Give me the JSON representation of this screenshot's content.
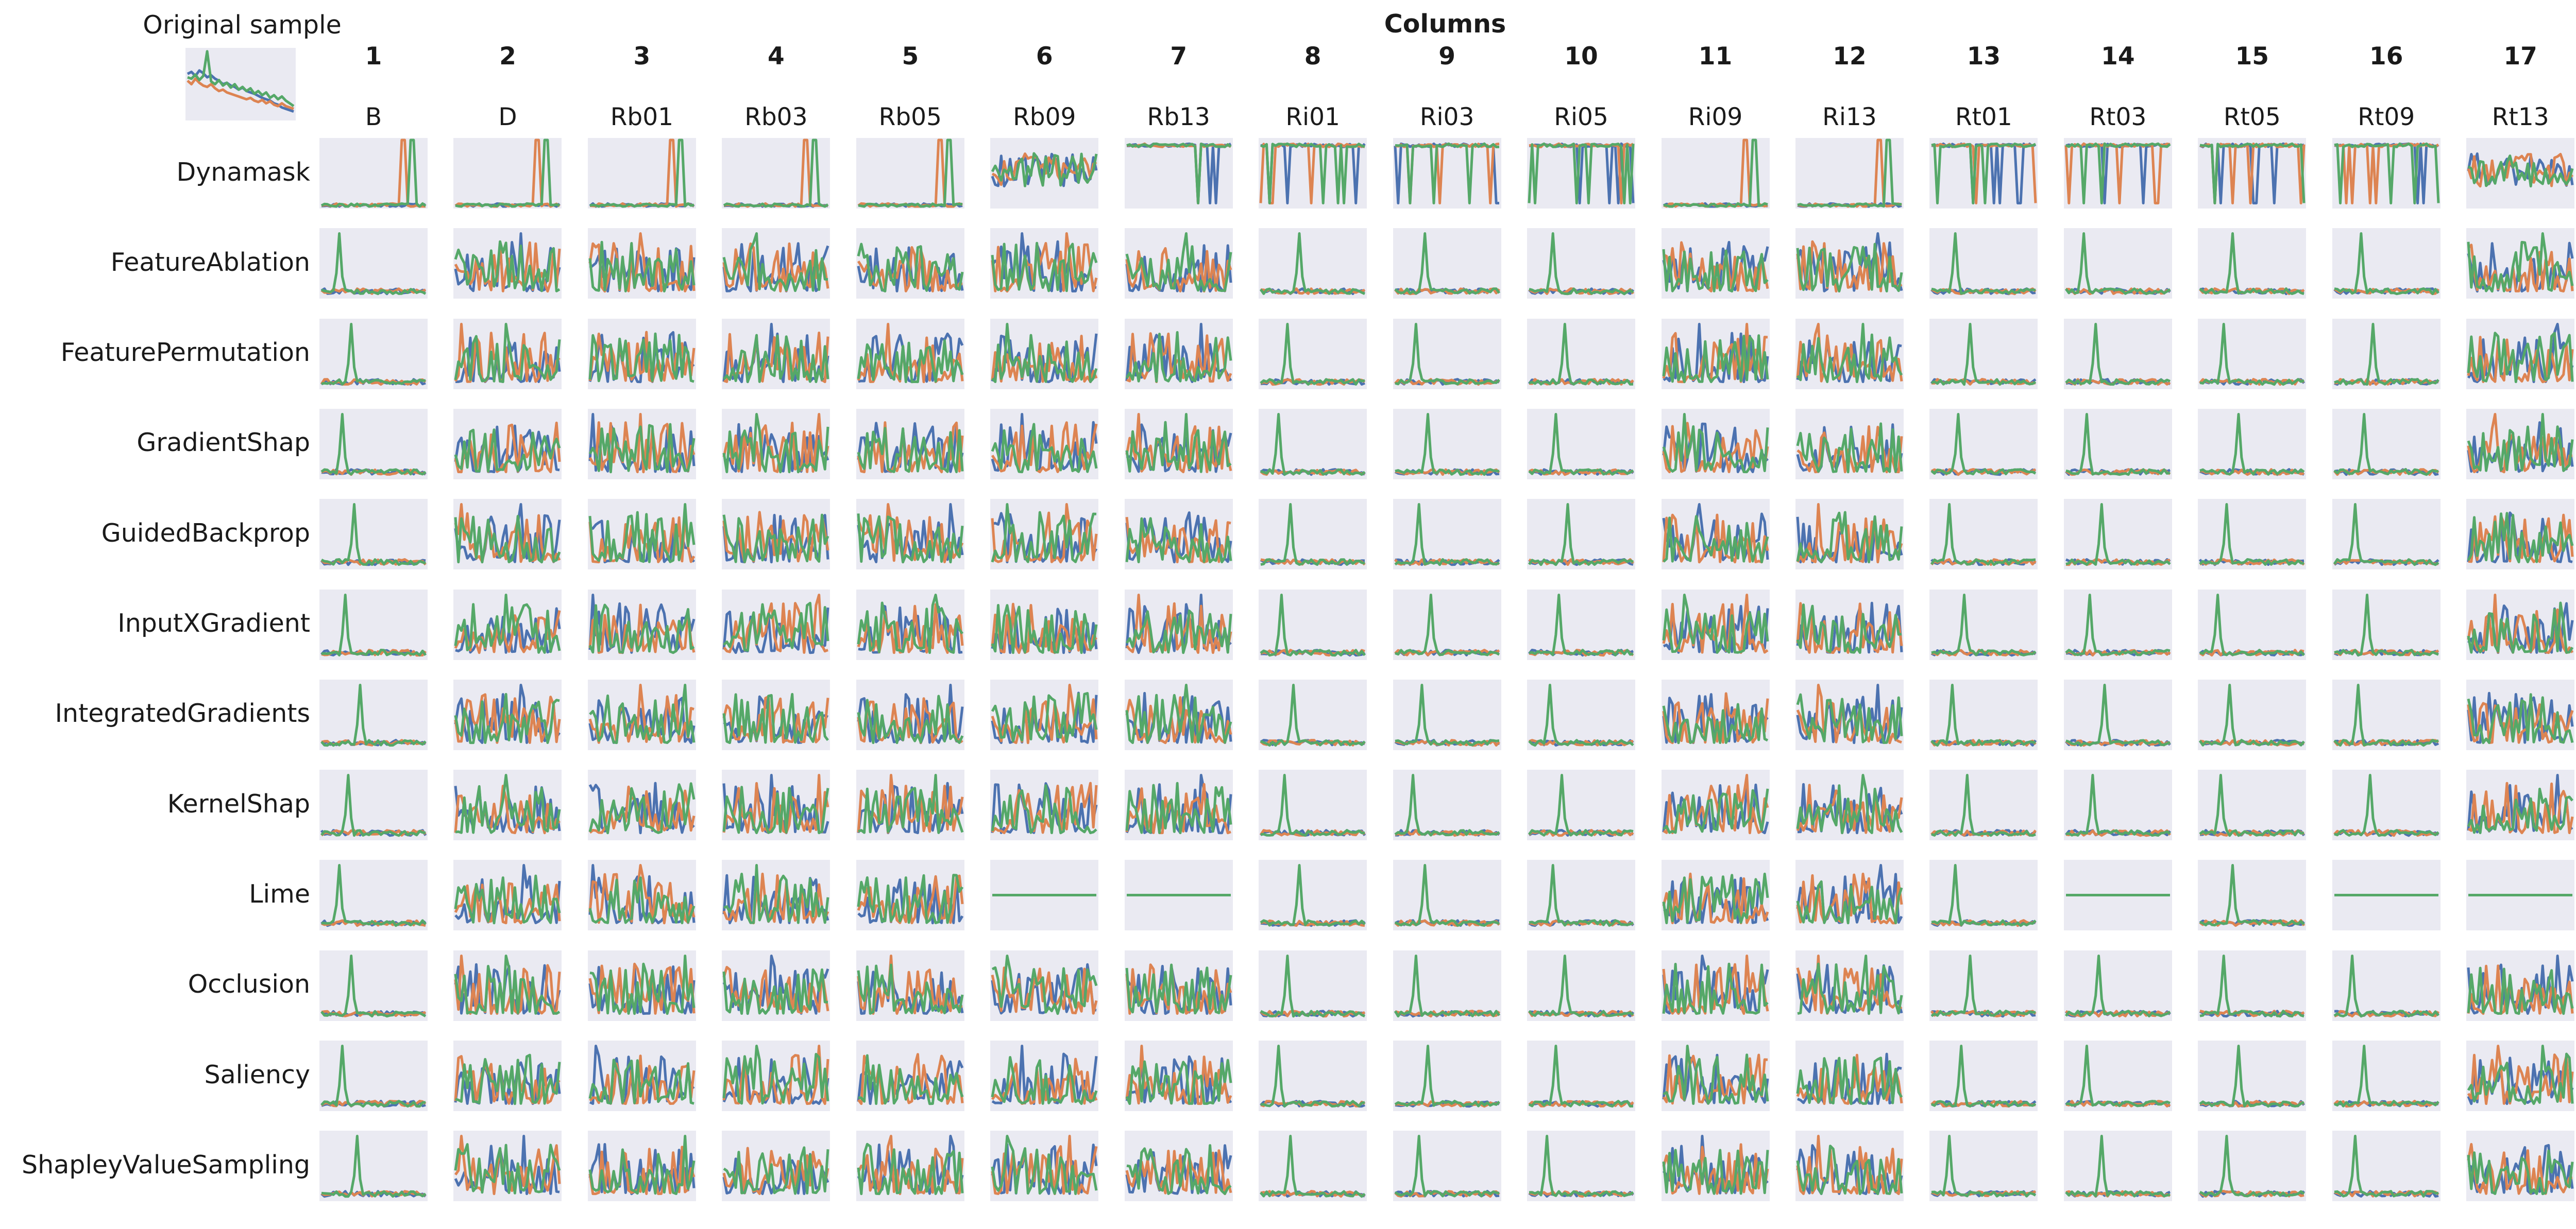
{
  "figure": {
    "suptitle": "Columns",
    "original_title": "Original sample",
    "colors": {
      "series_1": "#4c72b0",
      "series_2": "#dd8452",
      "series_3": "#55a868",
      "panel_bg": "#eaeaf2"
    }
  },
  "chart_data": {
    "type": "line",
    "grid": false,
    "col_numbers": [
      "1",
      "2",
      "3",
      "4",
      "5",
      "6",
      "7",
      "8",
      "9",
      "10",
      "11",
      "12",
      "13",
      "14",
      "15",
      "16",
      "17"
    ],
    "col_names": [
      "B",
      "D",
      "Rb01",
      "Rb03",
      "Rb05",
      "Rb09",
      "Rb13",
      "Ri01",
      "Ri03",
      "Ri05",
      "Ri09",
      "Ri13",
      "Rt01",
      "Rt03",
      "Rt05",
      "Rt09",
      "Rt13"
    ],
    "row_labels": [
      "Dynamask",
      "FeatureAblation",
      "FeaturePermutation",
      "GradientShap",
      "GuidedBackprop",
      "InputXGradient",
      "IntegratedGradients",
      "KernelShap",
      "Lime",
      "Occlusion",
      "Saliency",
      "ShapleyValueSampling"
    ],
    "series_count": 3,
    "original_sample": [
      [
        0.65,
        0.68,
        0.62,
        0.7,
        0.66,
        0.6,
        0.63,
        0.58,
        0.55,
        0.5,
        0.52,
        0.48,
        0.46,
        0.42,
        0.45,
        0.4,
        0.38,
        0.36,
        0.33,
        0.3,
        0.28,
        0.26,
        0.22,
        0.2,
        0.16,
        0.14,
        0.12,
        0.1
      ],
      [
        0.55,
        0.5,
        0.58,
        0.52,
        0.48,
        0.46,
        0.5,
        0.44,
        0.4,
        0.42,
        0.38,
        0.36,
        0.34,
        0.32,
        0.3,
        0.28,
        0.3,
        0.26,
        0.24,
        0.27,
        0.22,
        0.25,
        0.2,
        0.18,
        0.22,
        0.18,
        0.16,
        0.14
      ],
      [
        0.6,
        0.58,
        0.64,
        0.56,
        0.62,
        0.98,
        0.54,
        0.5,
        0.56,
        0.48,
        0.52,
        0.45,
        0.5,
        0.42,
        0.46,
        0.4,
        0.44,
        0.36,
        0.4,
        0.34,
        0.38,
        0.3,
        0.34,
        0.28,
        0.32,
        0.26,
        0.22,
        0.18
      ]
    ]
  }
}
